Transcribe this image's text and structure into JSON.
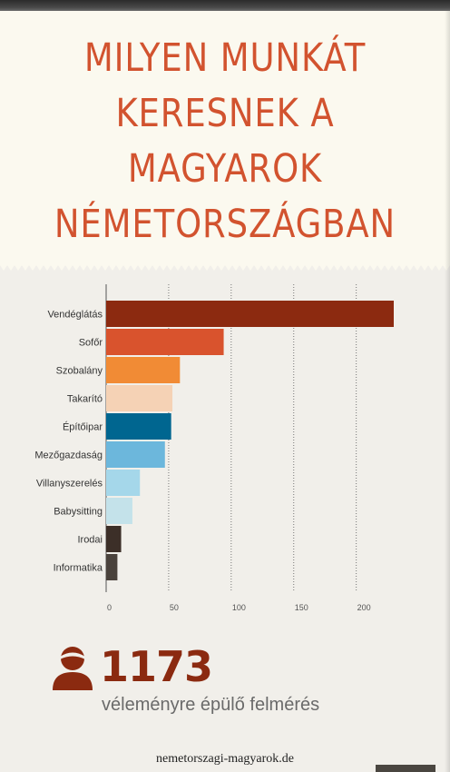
{
  "title_lines": [
    "MILYEN MUNKÁT",
    "KERESNEK A",
    "MAGYAROK",
    "NÉMETORSZÁGBAN"
  ],
  "chart_data": {
    "type": "bar",
    "orientation": "horizontal",
    "title": "",
    "xlabel": "",
    "ylabel": "",
    "categories": [
      "Vendéglátás",
      "Sofőr",
      "Szobalány",
      "Takarító",
      "Építőipar",
      "Mezőgazdaság",
      "Villanyszerelés",
      "Babysitting",
      "Irodai",
      "Informatika"
    ],
    "values": [
      230,
      94,
      59,
      53,
      52,
      47,
      27,
      21,
      12,
      9
    ],
    "colors": [
      "#8c2a10",
      "#d9532d",
      "#f18b35",
      "#f5d2b5",
      "#006690",
      "#6cb7dc",
      "#a5d7ea",
      "#c4e2ea",
      "#3c2f28",
      "#4a423c"
    ],
    "xlim": [
      0,
      230
    ],
    "xticks": [
      0,
      50,
      100,
      150,
      200
    ],
    "grid": true,
    "grid_style": "dotted-vertical"
  },
  "stats": {
    "count": "1173",
    "caption": "véleményre épülő felmérés",
    "icon": "person-icon",
    "color": "#8b2a10"
  },
  "footer": {
    "url": "nemetorszagi-magyarok.de"
  },
  "theme": {
    "accent": "#d2532f",
    "header_bg": "#fbf9ef",
    "body_bg": "#f1efea"
  }
}
